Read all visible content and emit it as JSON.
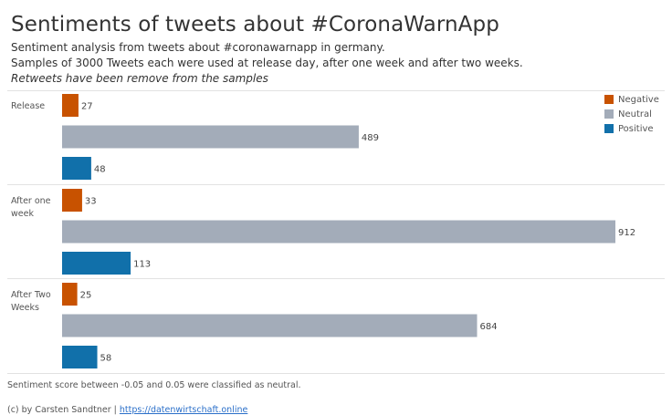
{
  "header": {
    "title": "Sentiments of tweets about #CoronaWarnApp",
    "subtitle_line1": "Sentiment analysis from tweets about #coronawarnapp in germany.",
    "subtitle_line2": "Samples of 3000 Tweets each were used at release day, after one week and after two weeks.",
    "subtitle_line3": "Retweets have been remove from the samples"
  },
  "footer": {
    "note": "Sentiment score between -0.05 and 0.05 were classified as neutral.",
    "credit_prefix": "(c) by Carsten Sandtner | ",
    "credit_link": "https://datenwirtschaft.online"
  },
  "chart_data": {
    "type": "bar",
    "orientation": "horizontal",
    "categories": [
      "Release",
      "After one week",
      "After Two Weeks"
    ],
    "category_labels": [
      [
        "Release"
      ],
      [
        "After one",
        "week"
      ],
      [
        "After Two",
        "Weeks"
      ]
    ],
    "series": [
      {
        "name": "Negative",
        "color": "#c85200",
        "values": [
          27,
          33,
          25
        ]
      },
      {
        "name": "Neutral",
        "color": "#a3acb9",
        "values": [
          489,
          912,
          684
        ]
      },
      {
        "name": "Positive",
        "color": "#1170aa",
        "values": [
          48,
          113,
          58
        ]
      }
    ],
    "xlim": [
      0,
      912
    ],
    "data_labels": true,
    "legend_position": "top-right",
    "grid": false
  }
}
